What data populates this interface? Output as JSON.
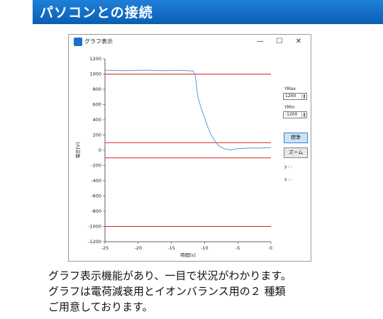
{
  "header": {
    "title": "パソコンとの接続"
  },
  "window": {
    "title": "グラフ表示",
    "controls": {
      "minimize": "—",
      "maximize": "☐",
      "close": "✕"
    }
  },
  "side_panel": {
    "ymax_label": "YMax",
    "ymax_value": "1200",
    "ymin_label": "YMin",
    "ymin_value": "-1200",
    "standard_button": "標準",
    "zoom_button": "ズーム",
    "y_readout": "y : -",
    "x_readout": "x : -"
  },
  "chart_data": {
    "type": "line",
    "xlabel": "時間[s]",
    "ylabel": "電圧[V]",
    "xlim": [
      -25,
      0
    ],
    "ylim": [
      -1200,
      1200
    ],
    "xticks": [
      -25,
      -20,
      -15,
      -10,
      -5,
      0
    ],
    "yticks": [
      1200,
      1000,
      800,
      600,
      400,
      200,
      0,
      -200,
      -400,
      -600,
      -800,
      -1000,
      -1200
    ],
    "reference_lines": [
      1000,
      100,
      -100,
      -1000
    ],
    "reference_color": "#e0231d",
    "series_color": "#5b9bd5",
    "series": [
      {
        "x": [
          -25,
          -22,
          -19,
          -16,
          -14,
          -12.5,
          -11.7,
          -11.4,
          -11.0,
          -10.5,
          -10.0,
          -9.5,
          -9.0,
          -8.5,
          -8.0,
          -7.5,
          -7.0,
          -6.5,
          -6.0,
          -5.5,
          -5.0,
          -4.0,
          -3.0,
          -2.0,
          -1.0,
          0
        ],
        "y": [
          1050,
          1045,
          1050,
          1045,
          1048,
          1045,
          1040,
          980,
          700,
          550,
          430,
          300,
          200,
          130,
          70,
          40,
          20,
          10,
          5,
          15,
          20,
          25,
          30,
          28,
          32,
          35
        ]
      }
    ]
  },
  "caption": {
    "line1": "グラフ表示機能があり、一目で状況がわかります。",
    "line2": "グラフは電荷減衰用とイオンバランス用の２ 種類",
    "line3": "ご用意しております。"
  }
}
